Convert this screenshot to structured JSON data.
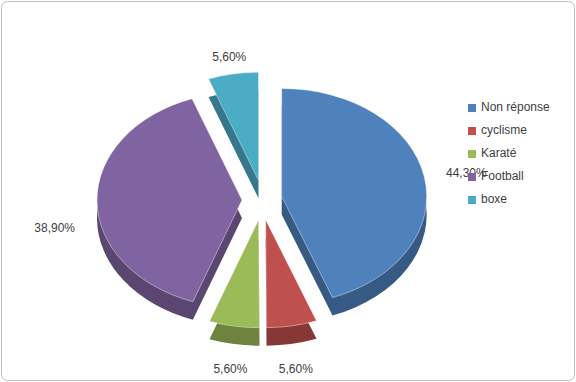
{
  "chart_data": {
    "type": "pie",
    "categories": [
      "Non réponse",
      "cyclisme",
      "Karaté",
      "Football",
      "boxe"
    ],
    "values": [
      44.3,
      5.6,
      5.6,
      38.9,
      5.6
    ],
    "value_labels": [
      "44,30%",
      "5,60%",
      "5,60%",
      "38,90%",
      "5,60%"
    ],
    "colors": [
      "#4f81bd",
      "#c0504d",
      "#9bbb59",
      "#8064a2",
      "#4bacc6"
    ],
    "data_labels": true,
    "legend": "right"
  }
}
